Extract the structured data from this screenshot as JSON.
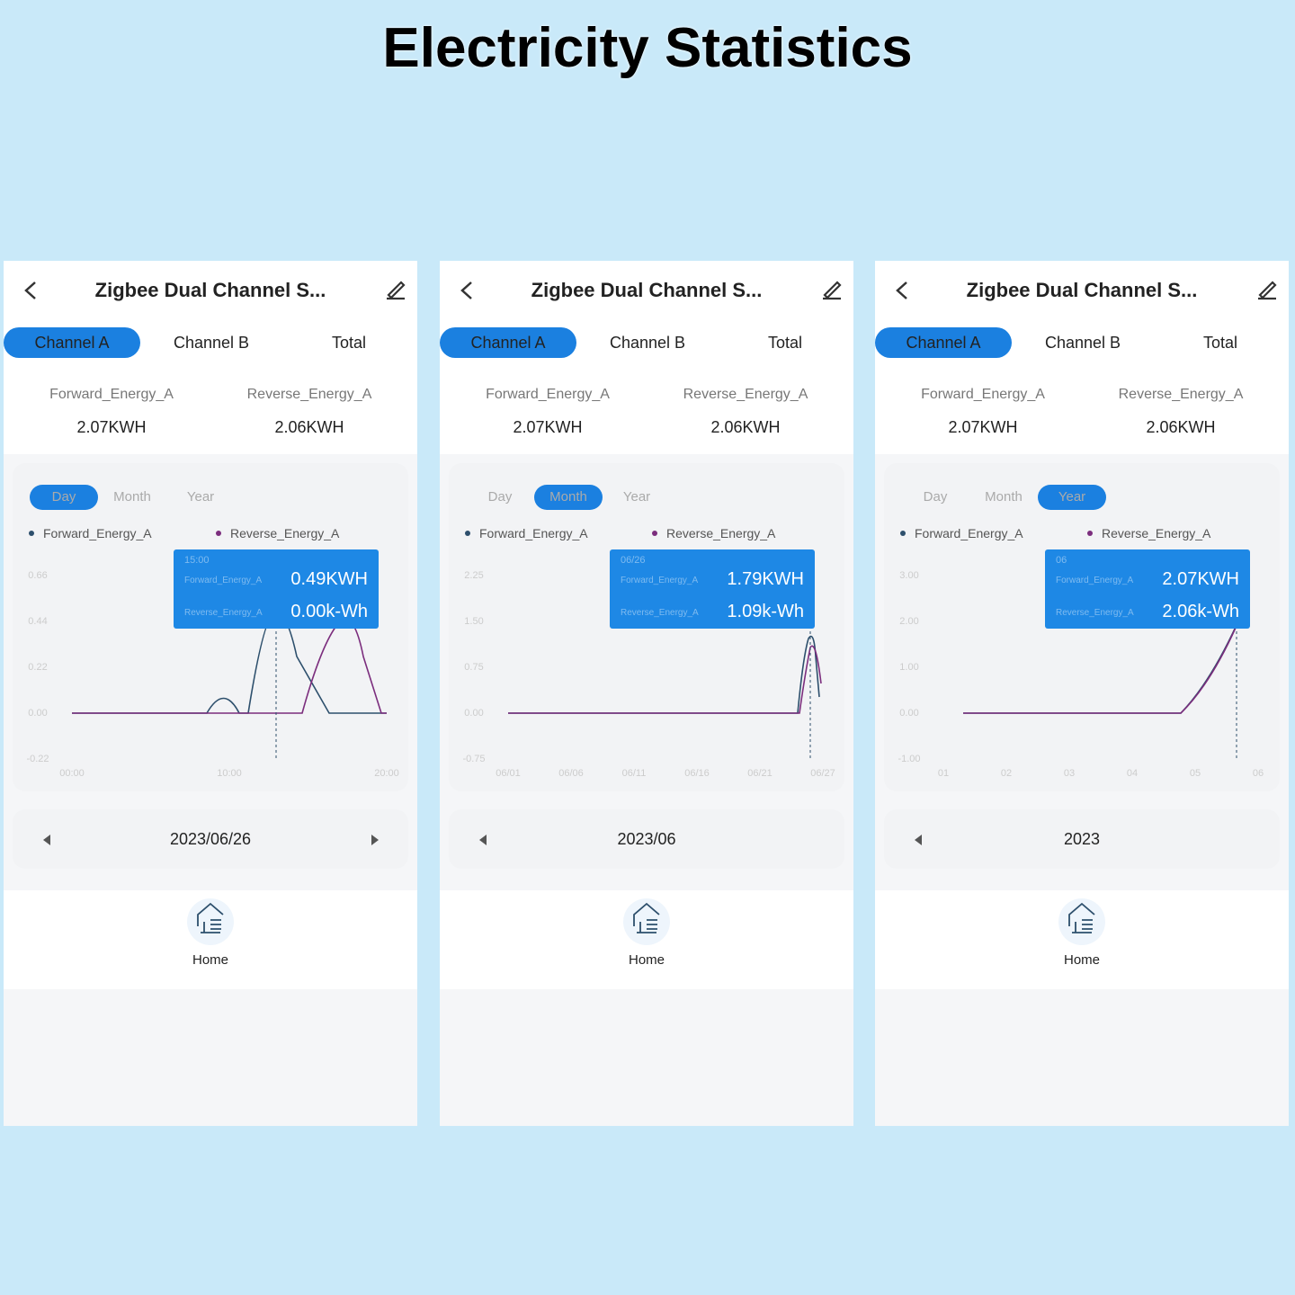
{
  "title": "Electricity Statistics",
  "screens": [
    {
      "header_title": "Zigbee Dual Channel S...",
      "tabs": [
        "Channel A",
        "Channel B",
        "Total"
      ],
      "active_tab": 0,
      "stats": [
        {
          "label": "Forward_Energy_A",
          "value": "2.07KWH"
        },
        {
          "label": "Reverse_Energy_A",
          "value": "2.06KWH"
        }
      ],
      "periods": [
        "Day",
        "Month",
        "Year"
      ],
      "active_period": 0,
      "legend": [
        "Forward_Energy_A",
        "Reverse_Energy_A"
      ],
      "chart": {
        "yticks": [
          "0.66",
          "0.44",
          "0.22",
          "0.00",
          "-0.22"
        ],
        "xticks": [
          "00:00",
          "10:00",
          "20:00"
        ]
      },
      "tooltip": {
        "header": "15:00",
        "rows": [
          {
            "name": "Forward_Energy_A",
            "value": "0.49KWH"
          },
          {
            "name": "Reverse_Energy_A",
            "value": "0.00k-Wh"
          }
        ]
      },
      "date": "2023/06/26",
      "nav_label": "Home"
    },
    {
      "header_title": "Zigbee Dual Channel S...",
      "tabs": [
        "Channel A",
        "Channel B",
        "Total"
      ],
      "active_tab": 0,
      "stats": [
        {
          "label": "Forward_Energy_A",
          "value": "2.07KWH"
        },
        {
          "label": "Reverse_Energy_A",
          "value": "2.06KWH"
        }
      ],
      "periods": [
        "Day",
        "Month",
        "Year"
      ],
      "active_period": 1,
      "legend": [
        "Forward_Energy_A",
        "Reverse_Energy_A"
      ],
      "chart": {
        "yticks": [
          "2.25",
          "1.50",
          "0.75",
          "0.00",
          "-0.75"
        ],
        "xticks": [
          "06/01",
          "06/06",
          "06/11",
          "06/16",
          "06/21",
          "06/27"
        ]
      },
      "tooltip": {
        "header": "06/26",
        "rows": [
          {
            "name": "Forward_Energy_A",
            "value": "1.79KWH"
          },
          {
            "name": "Reverse_Energy_A",
            "value": "1.09k-Wh"
          }
        ]
      },
      "date": "2023/06",
      "nav_label": "Home"
    },
    {
      "header_title": "Zigbee Dual Channel S...",
      "tabs": [
        "Channel A",
        "Channel B",
        "Total"
      ],
      "active_tab": 0,
      "stats": [
        {
          "label": "Forward_Energy_A",
          "value": "2.07KWH"
        },
        {
          "label": "Reverse_Energy_A",
          "value": "2.06KWH"
        }
      ],
      "periods": [
        "Day",
        "Month",
        "Year"
      ],
      "active_period": 2,
      "legend": [
        "Forward_Energy_A",
        "Reverse_Energy_A"
      ],
      "chart": {
        "yticks": [
          "3.00",
          "2.00",
          "1.00",
          "0.00",
          "-1.00"
        ],
        "xticks": [
          "01",
          "02",
          "03",
          "04",
          "05",
          "06"
        ]
      },
      "tooltip": {
        "header": "06",
        "rows": [
          {
            "name": "Forward_Energy_A",
            "value": "2.07KWH"
          },
          {
            "name": "Reverse_Energy_A",
            "value": "2.06k-Wh"
          }
        ]
      },
      "date": "2023",
      "nav_label": "Home"
    }
  ]
}
